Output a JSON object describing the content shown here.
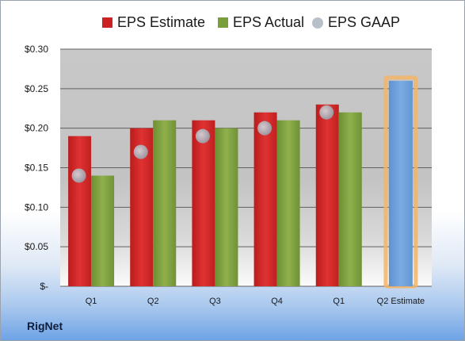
{
  "company_label": "RigNet",
  "chart_data": {
    "type": "bar",
    "categories": [
      "Q1",
      "Q2",
      "Q3",
      "Q4",
      "Q1",
      "Q2 Estimate"
    ],
    "series": [
      {
        "name": "EPS Estimate",
        "color": "#cc2222",
        "values": [
          0.19,
          0.2,
          0.21,
          0.22,
          0.23,
          null
        ]
      },
      {
        "name": "EPS Actual",
        "color": "#7a9e3c",
        "values": [
          0.14,
          0.21,
          0.2,
          0.21,
          0.22,
          null
        ]
      },
      {
        "name": "EPS GAAP",
        "color": "#b7bfc9",
        "marker": "circle",
        "values": [
          0.14,
          0.17,
          0.19,
          0.2,
          0.22,
          null
        ]
      }
    ],
    "estimate_bar": {
      "category": "Q2 Estimate",
      "value": 0.26,
      "color": "#6f9fd8",
      "highlight": "#f3b466"
    },
    "y_ticks": [
      {
        "value": 0.3,
        "label": "$0.30"
      },
      {
        "value": 0.25,
        "label": "$0.25"
      },
      {
        "value": 0.2,
        "label": "$0.20"
      },
      {
        "value": 0.15,
        "label": "$0.15"
      },
      {
        "value": 0.1,
        "label": "$0.10"
      },
      {
        "value": 0.05,
        "label": "$0.05"
      },
      {
        "value": 0.0,
        "label": "$-"
      }
    ],
    "ylim": [
      0,
      0.3
    ],
    "grid": true,
    "legend_position": "top"
  }
}
